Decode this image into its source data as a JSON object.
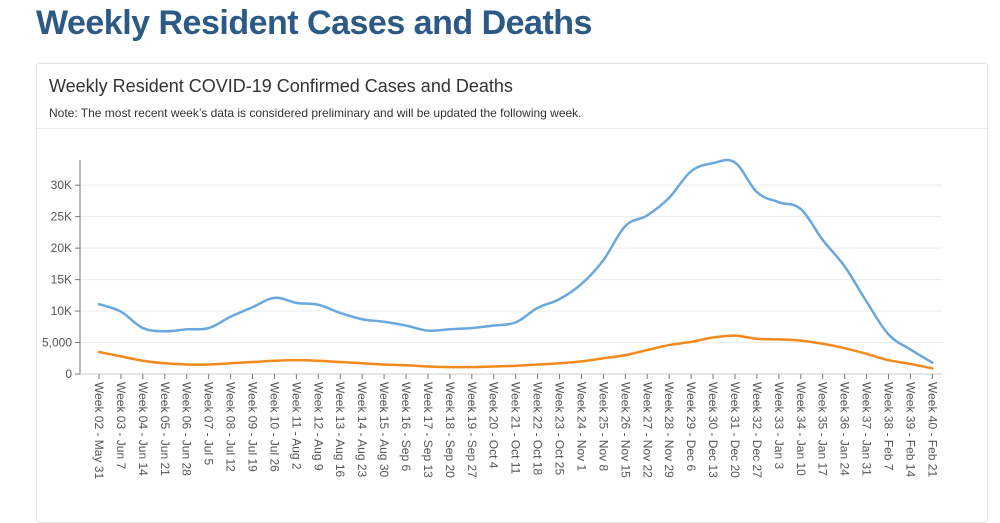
{
  "header": {
    "title": "Weekly Resident Cases and Deaths"
  },
  "card": {
    "title": "Weekly Resident COVID-19 Confirmed Cases and Deaths",
    "note": "Note: The most recent week’s data is considered preliminary and will be updated the following week."
  },
  "chart_data": {
    "type": "line",
    "title": "Weekly Resident COVID-19 Confirmed Cases and Deaths",
    "xlabel": "",
    "ylabel": "",
    "ylim": [
      0,
      34000
    ],
    "yticks": [
      {
        "value": 0,
        "label": "0"
      },
      {
        "value": 5000,
        "label": "5,000"
      },
      {
        "value": 10000,
        "label": "10K"
      },
      {
        "value": 15000,
        "label": "15K"
      },
      {
        "value": 20000,
        "label": "20K"
      },
      {
        "value": 25000,
        "label": "25K"
      },
      {
        "value": 30000,
        "label": "30K"
      }
    ],
    "grid": true,
    "categories": [
      "Week 02 - May 31",
      "Week 03 - Jun 7",
      "Week 04 - Jun 14",
      "Week 05 - Jun 21",
      "Week 06 - Jun 28",
      "Week 07 - Jul 5",
      "Week 08 - Jul 12",
      "Week 09 - Jul 19",
      "Week 10 - Jul 26",
      "Week 11 - Aug 2",
      "Week 12 - Aug 9",
      "Week 13 - Aug 16",
      "Week 14 - Aug 23",
      "Week 15 - Aug 30",
      "Week 16 - Sep 6",
      "Week 17 - Sep 13",
      "Week 18 - Sep 20",
      "Week 19 - Sep 27",
      "Week 20 - Oct 4",
      "Week 21 - Oct 11",
      "Week 22 - Oct 18",
      "Week 23 - Oct 25",
      "Week 24 - Nov 1",
      "Week 25 - Nov 8",
      "Week 26 - Nov 15",
      "Week 27 - Nov 22",
      "Week 28 - Nov 29",
      "Week 29 - Dec 6",
      "Week 30 - Dec 13",
      "Week 31 - Dec 20",
      "Week 32 - Dec 27",
      "Week 33 - Jan 3",
      "Week 34 - Jan 10",
      "Week 35 - Jan 17",
      "Week 36 - Jan 24",
      "Week 37 - Jan 31",
      "Week 38 - Feb 7",
      "Week 39 - Feb 14",
      "Week 40 - Feb 21"
    ],
    "series": [
      {
        "name": "Cases",
        "color": "#6aa7dc",
        "values": [
          11100,
          9900,
          7300,
          6800,
          7100,
          7300,
          9100,
          10600,
          12100,
          11300,
          11000,
          9700,
          8700,
          8300,
          7700,
          6900,
          7100,
          7300,
          7700,
          8200,
          10500,
          11900,
          14300,
          18100,
          23500,
          25200,
          28000,
          32200,
          33500,
          33600,
          28900,
          27300,
          26200,
          21300,
          17100,
          11500,
          6300,
          3900,
          1800
        ]
      },
      {
        "name": "Deaths",
        "color": "#f28a1e",
        "values": [
          3500,
          2800,
          2100,
          1700,
          1500,
          1500,
          1700,
          1900,
          2100,
          2200,
          2100,
          1900,
          1700,
          1500,
          1400,
          1200,
          1100,
          1100,
          1200,
          1300,
          1500,
          1700,
          2000,
          2500,
          3000,
          3800,
          4600,
          5100,
          5800,
          6100,
          5600,
          5500,
          5300,
          4800,
          4100,
          3200,
          2200,
          1600,
          900
        ]
      }
    ]
  }
}
